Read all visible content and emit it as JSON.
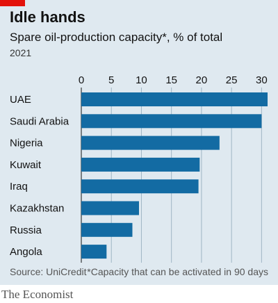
{
  "header": {
    "title": "Idle hands",
    "subtitle": "Spare oil-production capacity*, % of total",
    "year": "2021"
  },
  "footer": {
    "source": "Source: UniCredit",
    "note": "*Capacity that can be activated in 90 days"
  },
  "brand": "The Economist",
  "colors": {
    "bar": "#136ba3",
    "accent": "#e3120b",
    "background": "#dfe9f0",
    "grid": "#9fb5c4"
  },
  "chart_data": {
    "type": "bar",
    "orientation": "horizontal",
    "title": "Idle hands",
    "subtitle": "Spare oil-production capacity*, % of total",
    "categories": [
      "UAE",
      "Saudi Arabia",
      "Nigeria",
      "Kuwait",
      "Iraq",
      "Kazakhstan",
      "Russia",
      "Angola"
    ],
    "values": [
      31,
      30,
      23,
      19.7,
      19.5,
      9.6,
      8.5,
      4.2
    ],
    "xlim": [
      0,
      31
    ],
    "xticks": [
      0,
      5,
      10,
      15,
      20,
      25,
      30
    ],
    "grid": true,
    "xlabel": "",
    "ylabel": ""
  }
}
